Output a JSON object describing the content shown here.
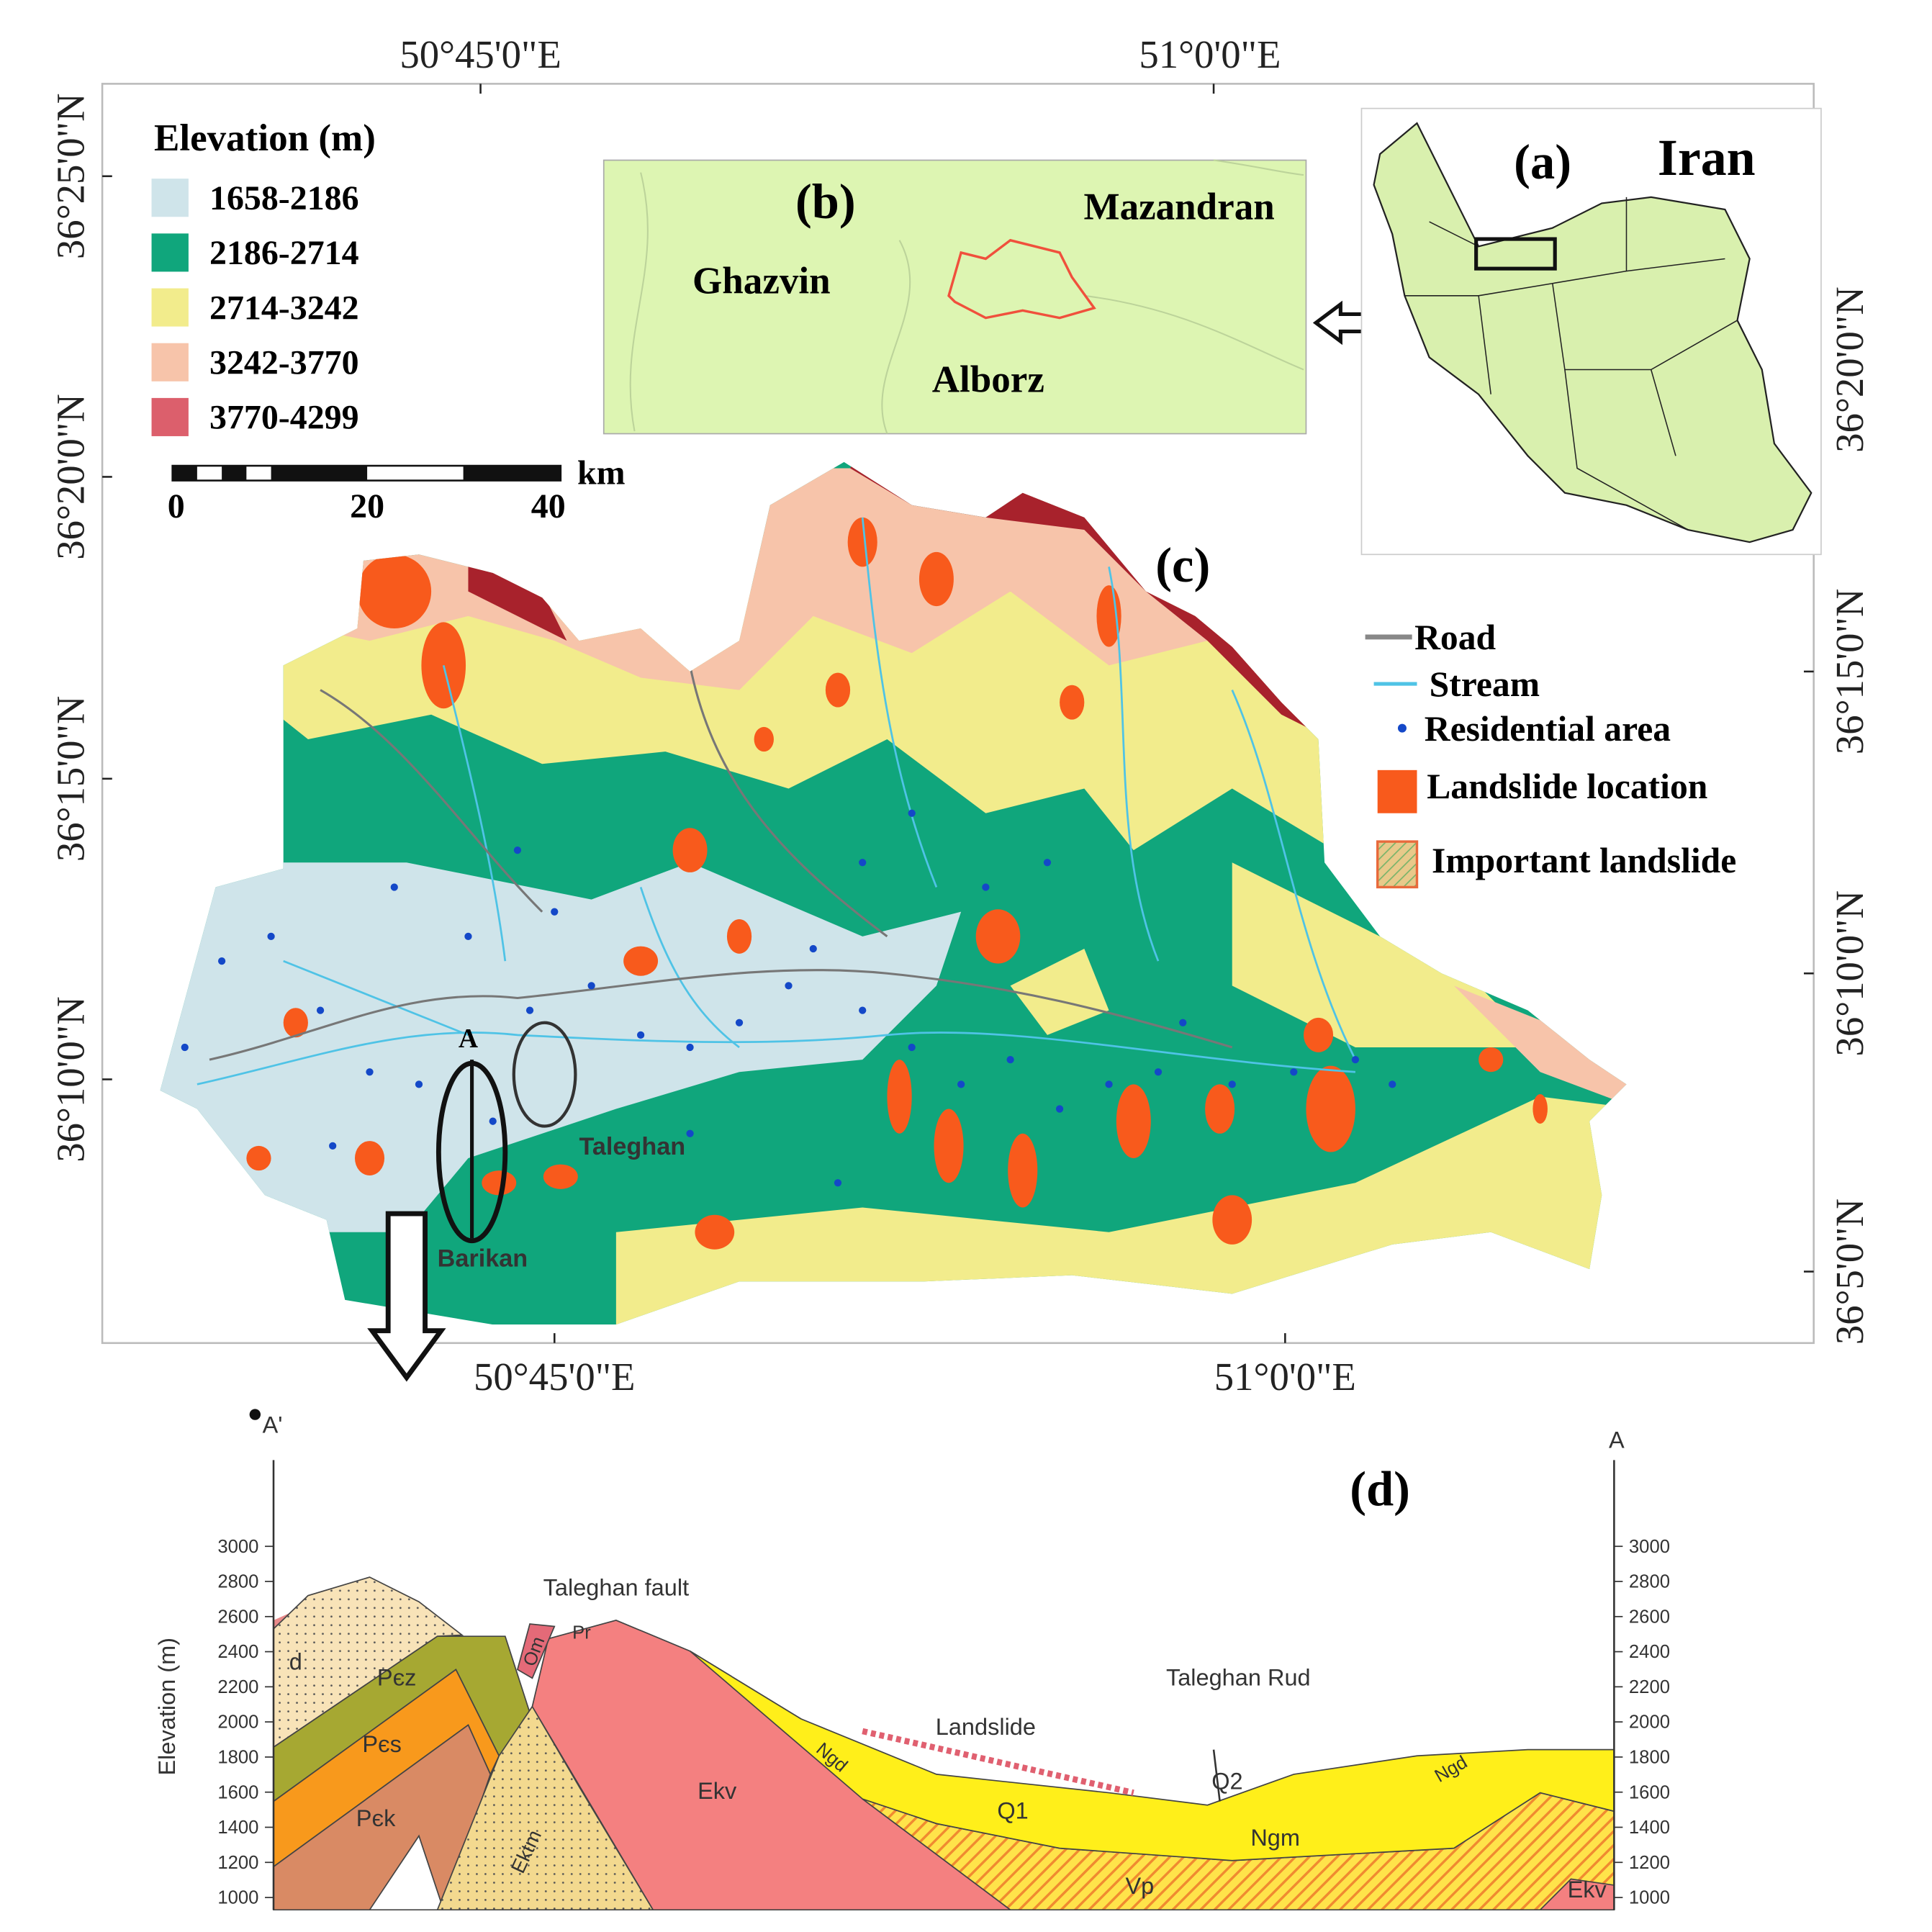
{
  "map": {
    "top_longitudes": [
      "50°45'0\"E",
      "51°0'0\"E"
    ],
    "bottom_longitudes": [
      "50°45'0\"E",
      "51°0'0\"E"
    ],
    "left_latitudes": [
      "36°25'0\"N",
      "36°20'0\"N",
      "36°15'0\"N",
      "36°10'0\"N"
    ],
    "right_latitudes": [
      "36°20'0\"N",
      "36°15'0\"N",
      "36°10'0\"N",
      "36°5'0\"N"
    ]
  },
  "legend": {
    "title": "Elevation (m)",
    "classes": [
      {
        "label": "1658-2186",
        "color": "#cfe4ea"
      },
      {
        "label": "2186-2714",
        "color": "#10a67c"
      },
      {
        "label": "2714-3242",
        "color": "#f2ec8c"
      },
      {
        "label": "3242-3770",
        "color": "#f7c4aa"
      },
      {
        "label": "3770-4299",
        "color": "#dc5f6c"
      }
    ]
  },
  "scale_bar": {
    "labels": [
      "0",
      "20",
      "40"
    ],
    "unit": "km"
  },
  "inset_b": {
    "label": "(b)",
    "regions": [
      "Mazandran",
      "Ghazvin",
      "Alborz"
    ]
  },
  "inset_a": {
    "label": "(a)",
    "country": "Iran"
  },
  "panel_c": {
    "label": "(c)",
    "legend": [
      "Road",
      "Stream",
      "Residential area",
      "Landslide location",
      "Important landslide"
    ],
    "places": [
      "A",
      "Taleghan",
      "Barikan"
    ]
  },
  "section": {
    "label": "(d)",
    "start": "A'",
    "end": "A",
    "y_label": "Elevation (m)",
    "yticks": [
      1000,
      1200,
      1400,
      1600,
      1800,
      2000,
      2200,
      2400,
      2600,
      2800,
      3000
    ],
    "annotations": [
      "Taleghan fault",
      "Landslide",
      "Taleghan Rud",
      "Q2"
    ],
    "units": [
      "Pєk",
      "Pєs",
      "Pєz",
      "d",
      "Ektm",
      "Ekv",
      "Om",
      "Pr",
      "Q1",
      "Ngm",
      "Vp",
      "Ekv",
      "Ngd",
      "Ngd"
    ]
  }
}
